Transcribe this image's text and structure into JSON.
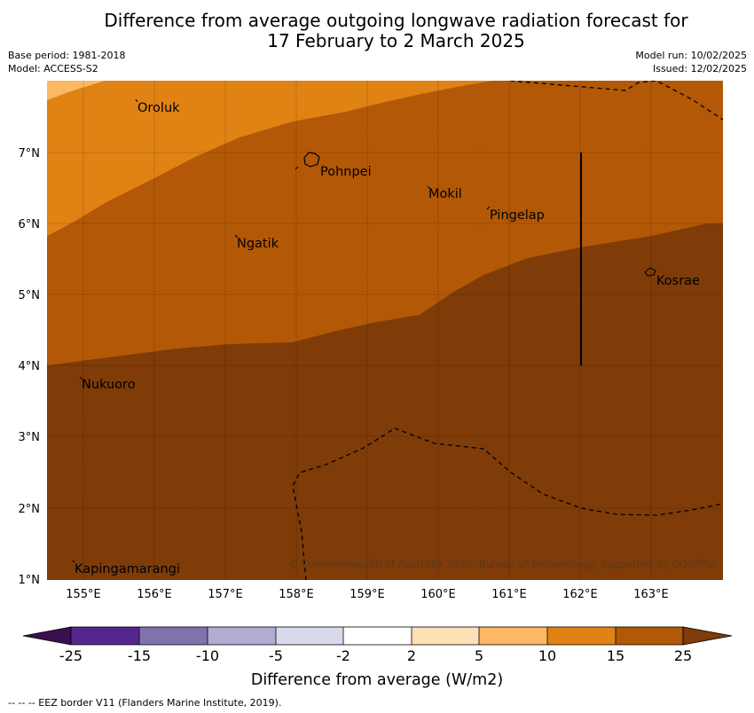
{
  "title_line1": "Difference from average outgoing longwave radiation forecast for",
  "title_line2": "17 February to 2 March 2025",
  "meta_left": [
    "Base period: 1981-2018",
    "Model: ACCESS-S2"
  ],
  "meta_right": [
    "Model run: 10/02/2025",
    "Issued: 12/02/2025"
  ],
  "x_ticks": [
    "155°E",
    "156°E",
    "157°E",
    "158°E",
    "159°E",
    "160°E",
    "161°E",
    "162°E",
    "163°E"
  ],
  "y_ticks": [
    "7°N",
    "6°N",
    "5°N",
    "4°N",
    "3°N",
    "2°N",
    "1°N"
  ],
  "places": {
    "oroluk": "Oroluk",
    "pohnpei": "Pohnpei",
    "mokil": "Mokil",
    "pingelap": "Pingelap",
    "ngatik": "Ngatik",
    "kosrae": "Kosrae",
    "nukuoro": "Nukuoro",
    "kapingamarangi": "Kapingamarangi"
  },
  "copyright": "© Commonwealth of Australia 2025, Bureau of Meteorology, supported by COSPPac",
  "colorbar": {
    "label": "Difference from average (W/m2)",
    "ticks": [
      "-25",
      "-15",
      "-10",
      "-5",
      "-2",
      "2",
      "5",
      "10",
      "15",
      "25"
    ],
    "colors": {
      "below": "#3b0f4f",
      "b1": "#54278f",
      "b2": "#8073ac",
      "b3": "#b2abd2",
      "b4": "#d8daeb",
      "b5": "#ffffff",
      "b6": "#fee0b6",
      "b7": "#fdb863",
      "b8": "#e08214",
      "b9": "#b35806",
      "above": "#7f3b08"
    }
  },
  "footnote": "--  --  -- EEZ border V11 (Flanders Marine Institute, 2019)."
}
